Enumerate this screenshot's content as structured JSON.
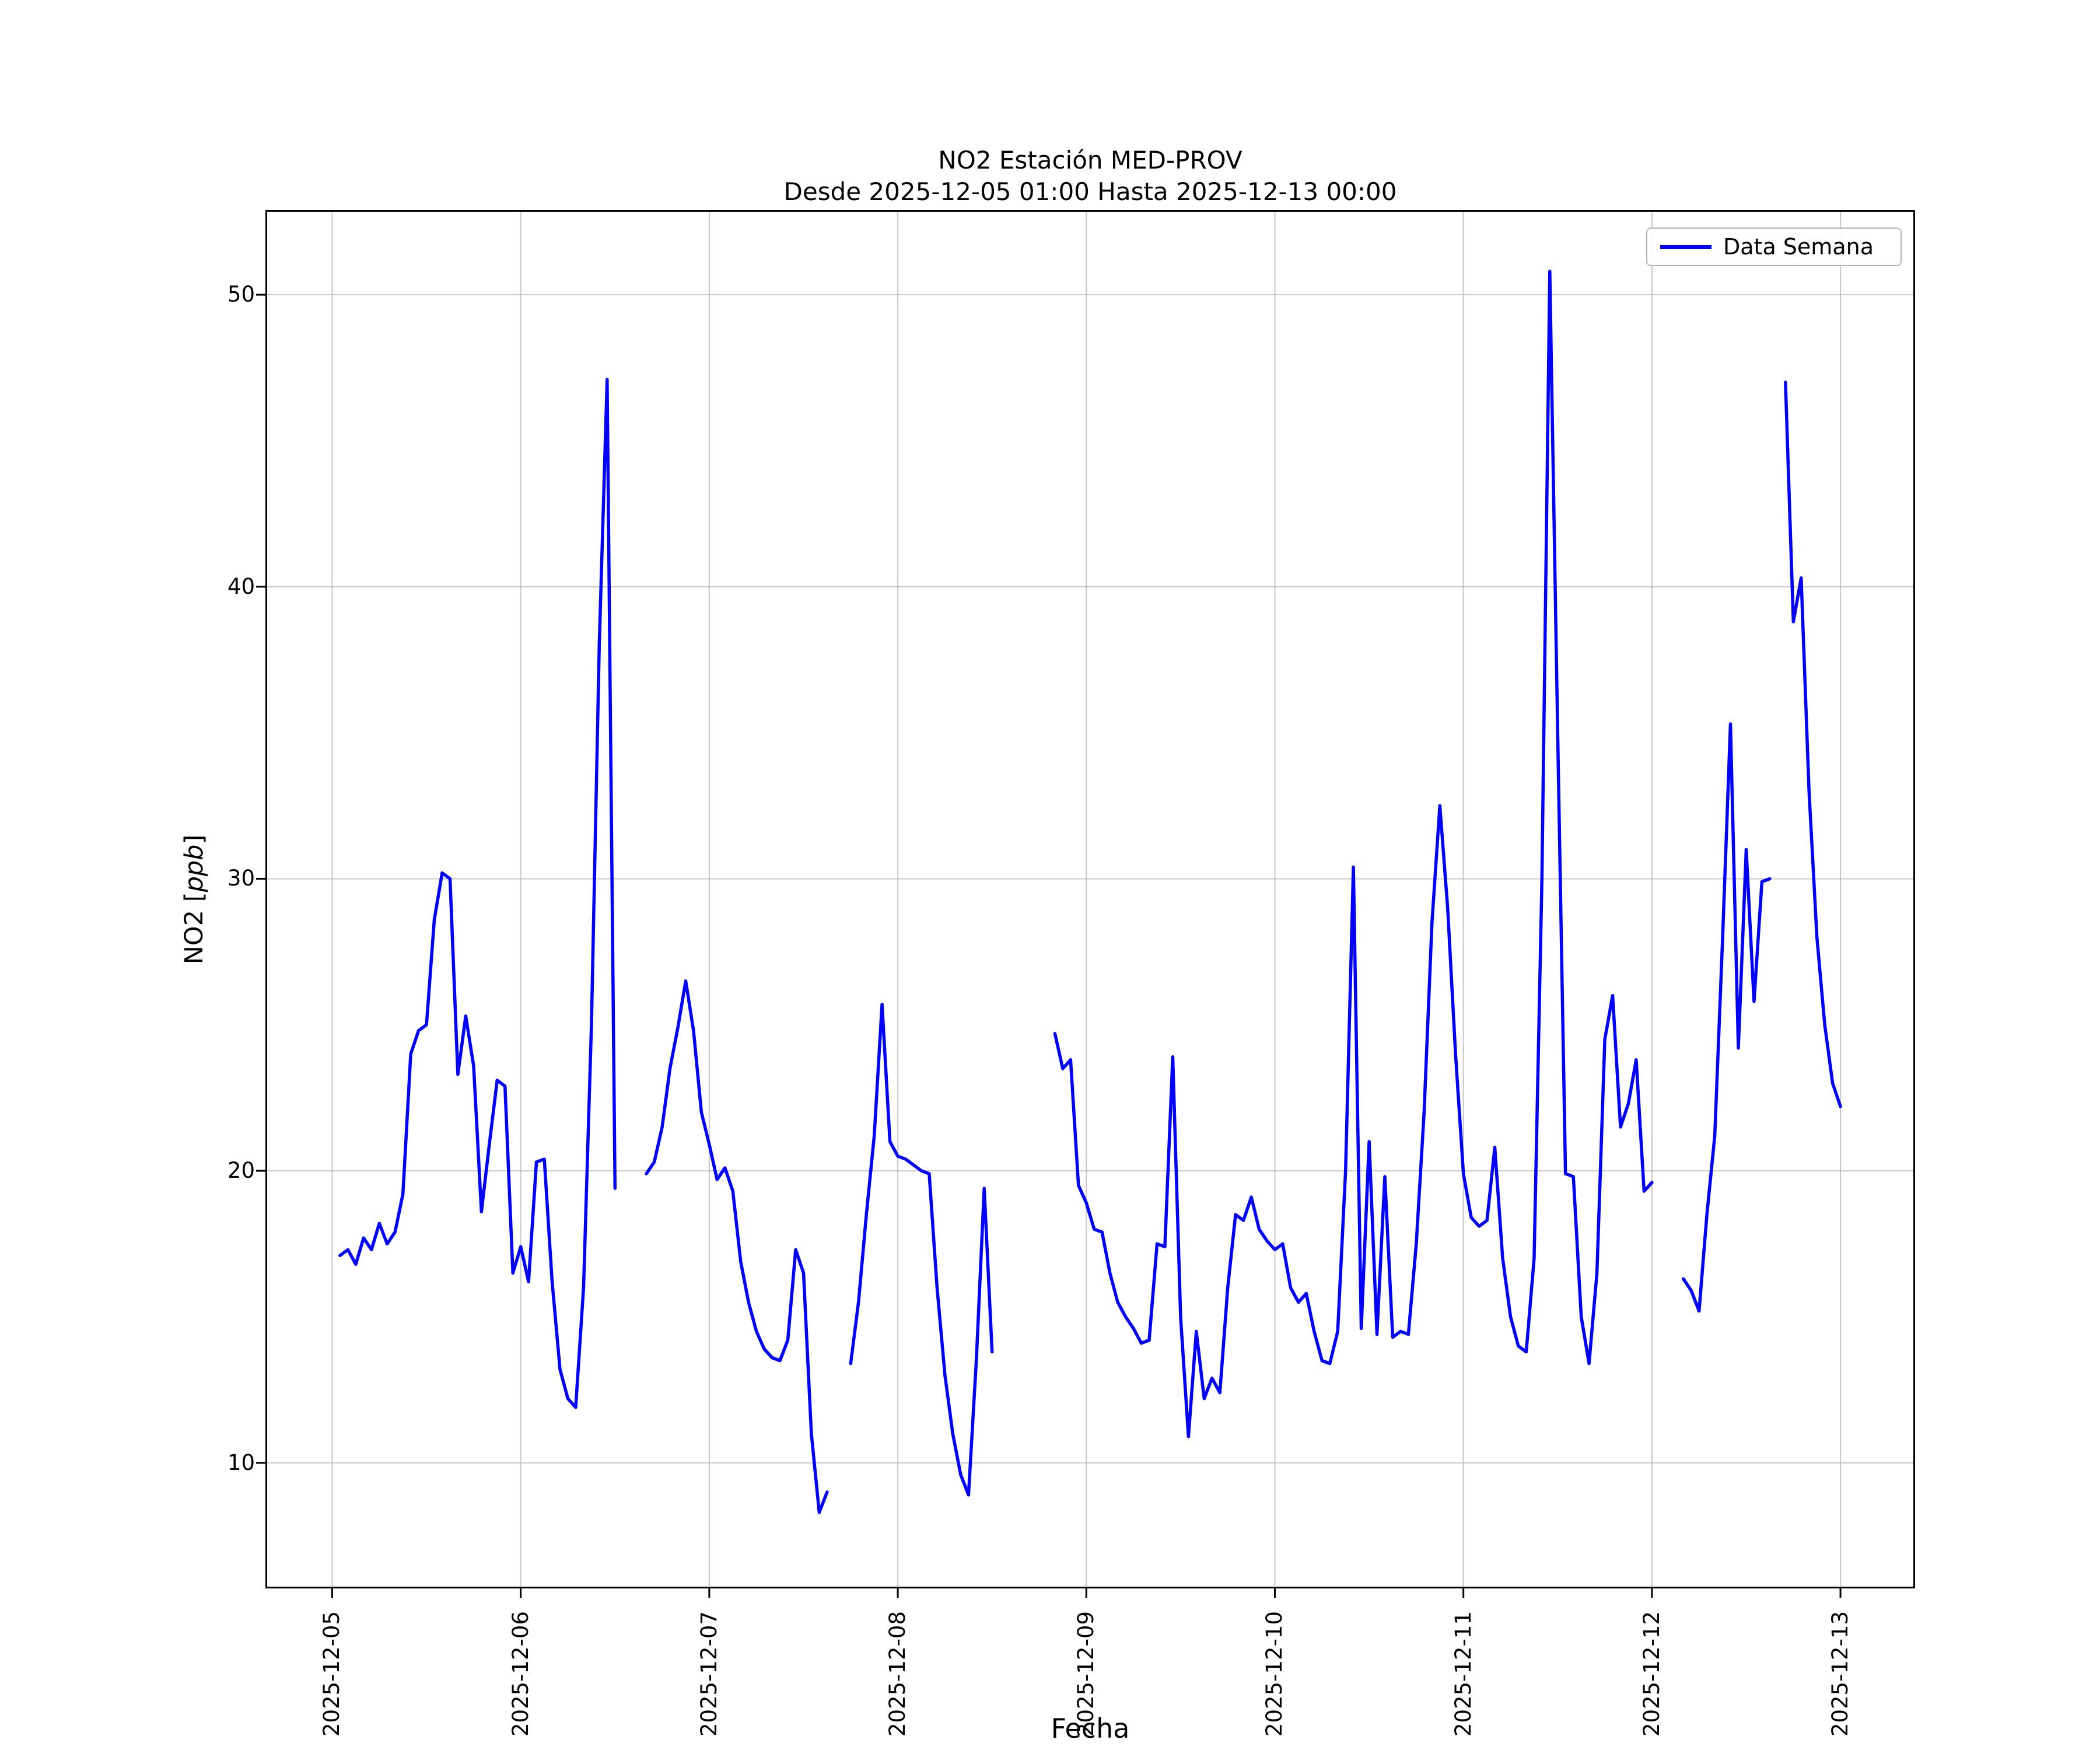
{
  "title": {
    "line1": "NO2 Estación MED-PROV",
    "line2": "Desde 2025-12-05 01:00 Hasta 2025-12-13 00:00"
  },
  "axes": {
    "xlabel": "Fecha",
    "ylabel_prefix": "NO2 [",
    "ylabel_math": "ppb",
    "ylabel_suffix": "]"
  },
  "legend": {
    "label": "Data Semana"
  },
  "colors": {
    "line": "#0000ff",
    "grid": "#b0b0b0",
    "spine": "#000000",
    "legend_border": "#b3b3b3"
  },
  "chart_data": {
    "type": "line",
    "title": "NO2 Estación MED-PROV — Desde 2025-12-05 01:00 Hasta 2025-12-13 00:00",
    "xlabel": "Fecha",
    "ylabel": "NO2 [ppb]",
    "legend_entries": [
      "Data Semana"
    ],
    "legend_position": "upper right",
    "grid": true,
    "line_color": "#0000ff",
    "x_unit": "hours since 2025-12-05 00:00, hourly samples, gaps = missing data",
    "xlim": [
      -8.5,
      201.5
    ],
    "ylim": [
      5.7,
      52.9
    ],
    "x_ticks": [
      {
        "hour": 0,
        "label": "2025-12-05"
      },
      {
        "hour": 24,
        "label": "2025-12-06"
      },
      {
        "hour": 48,
        "label": "2025-12-07"
      },
      {
        "hour": 72,
        "label": "2025-12-08"
      },
      {
        "hour": 96,
        "label": "2025-12-09"
      },
      {
        "hour": 120,
        "label": "2025-12-10"
      },
      {
        "hour": 144,
        "label": "2025-12-11"
      },
      {
        "hour": 168,
        "label": "2025-12-12"
      },
      {
        "hour": 192,
        "label": "2025-12-13"
      }
    ],
    "y_ticks": [
      {
        "value": 10,
        "label": "10"
      },
      {
        "value": 20,
        "label": "20"
      },
      {
        "value": 30,
        "label": "30"
      },
      {
        "value": 40,
        "label": "40"
      },
      {
        "value": 50,
        "label": "50"
      }
    ],
    "hours_start": 1,
    "hours_step": 1,
    "values": [
      17.1,
      17.3,
      16.8,
      17.7,
      17.3,
      18.2,
      17.5,
      17.9,
      19.2,
      24.0,
      24.8,
      25.0,
      28.6,
      30.2,
      30.0,
      23.3,
      25.3,
      23.6,
      18.6,
      20.9,
      23.1,
      22.9,
      16.5,
      17.4,
      16.2,
      20.3,
      20.4,
      16.2,
      13.2,
      12.2,
      11.9,
      16.0,
      25.0,
      38.0,
      47.1,
      19.4,
      null,
      null,
      null,
      19.9,
      20.3,
      21.5,
      23.5,
      24.9,
      26.5,
      24.8,
      22.0,
      20.9,
      19.7,
      20.1,
      19.3,
      16.9,
      15.5,
      14.5,
      13.9,
      13.6,
      13.5,
      14.2,
      17.3,
      16.5,
      11.0,
      8.3,
      9.0,
      null,
      null,
      13.4,
      15.5,
      18.5,
      21.2,
      25.7,
      21.0,
      20.5,
      20.4,
      20.2,
      20.0,
      19.9,
      16.0,
      13.0,
      11.0,
      9.6,
      8.9,
      13.5,
      19.4,
      13.8,
      null,
      null,
      null,
      null,
      null,
      null,
      null,
      24.7,
      23.5,
      23.8,
      19.5,
      18.9,
      18.0,
      17.9,
      16.5,
      15.5,
      15.0,
      14.6,
      14.1,
      14.2,
      17.5,
      17.4,
      23.9,
      15.0,
      10.9,
      14.5,
      12.2,
      12.9,
      12.4,
      16.0,
      18.5,
      18.3,
      19.1,
      18.0,
      17.6,
      17.3,
      17.5,
      16.0,
      15.5,
      15.8,
      14.5,
      13.5,
      13.4,
      14.5,
      20.0,
      30.4,
      14.6,
      21.0,
      14.4,
      19.8,
      14.3,
      14.5,
      14.4,
      17.5,
      22.0,
      28.5,
      32.5,
      29.0,
      24.0,
      19.9,
      18.4,
      18.1,
      18.3,
      20.8,
      17.0,
      15.0,
      14.0,
      13.8,
      17.0,
      30.0,
      50.8,
      35.0,
      19.9,
      19.8,
      15.0,
      13.4,
      16.5,
      24.5,
      26.0,
      21.5,
      22.3,
      23.8,
      19.3,
      19.6,
      null,
      null,
      null,
      16.3,
      15.9,
      15.2,
      18.5,
      21.2,
      28.0,
      35.3,
      24.2,
      31.0,
      25.8,
      29.9,
      30.0,
      null,
      47.0,
      38.8,
      40.3,
      33.0,
      28.0,
      25.0,
      23.0,
      22.2
    ]
  }
}
